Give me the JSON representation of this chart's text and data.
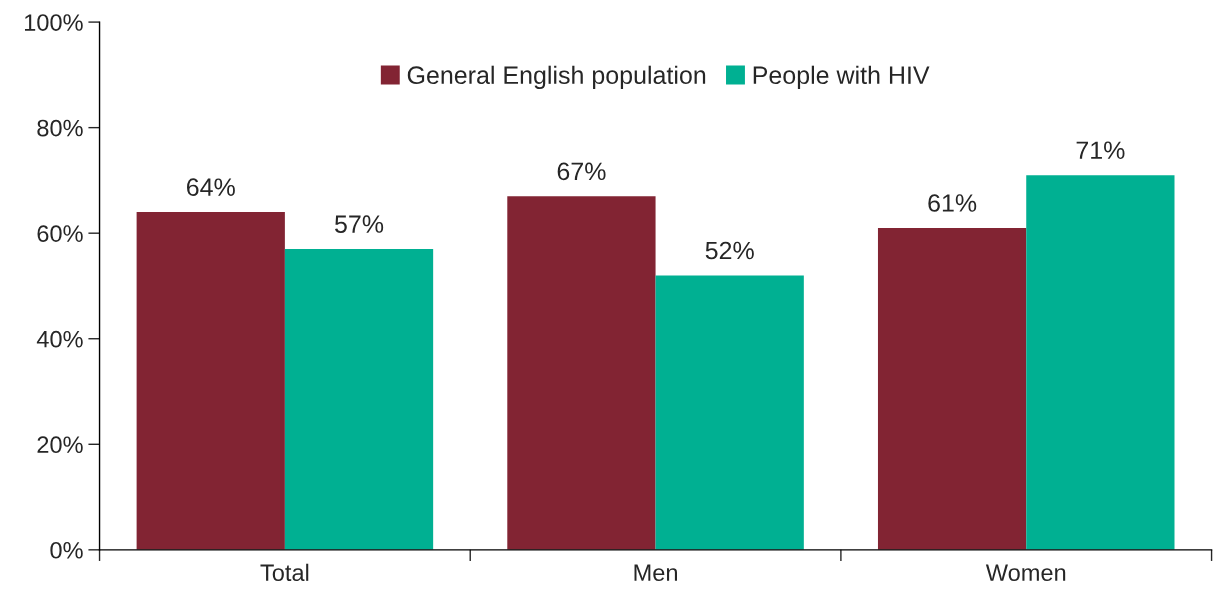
{
  "chart_data": {
    "type": "bar",
    "categories": [
      "Total",
      "Men",
      "Women"
    ],
    "series": [
      {
        "name": "General English population",
        "color": "#822433",
        "values": [
          64,
          67,
          61
        ],
        "value_labels": [
          "64%",
          "67%",
          "61%"
        ]
      },
      {
        "name": "People with HIV",
        "color": "#00b092",
        "values": [
          57,
          52,
          71
        ],
        "value_labels": [
          "57%",
          "52%",
          "71%"
        ]
      }
    ],
    "ylim": [
      0,
      100
    ],
    "yticks": [
      {
        "value": 0,
        "label": "0%"
      },
      {
        "value": 20,
        "label": "20%"
      },
      {
        "value": 40,
        "label": "40%"
      },
      {
        "value": 60,
        "label": "60%"
      },
      {
        "value": 80,
        "label": "80%"
      },
      {
        "value": 100,
        "label": "100%"
      }
    ],
    "grid": false,
    "legend": "top"
  }
}
